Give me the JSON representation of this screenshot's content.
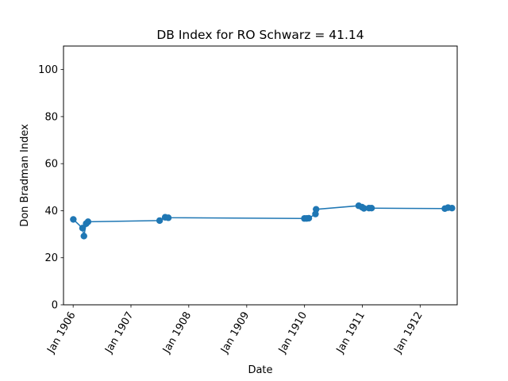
{
  "chart_data": {
    "type": "line",
    "title": "DB Index for RO Schwarz = 41.14",
    "xlabel": "Date",
    "ylabel": "Don Bradman Index",
    "ylim": [
      0,
      110
    ],
    "xlim": [
      "1905-11-01",
      "1912-08-22"
    ],
    "yticks": [
      0,
      20,
      40,
      60,
      80,
      100
    ],
    "xticks": [
      {
        "date": "1906-01-01",
        "label": "Jan 1906"
      },
      {
        "date": "1907-01-01",
        "label": "Jan 1907"
      },
      {
        "date": "1908-01-01",
        "label": "Jan 1908"
      },
      {
        "date": "1909-01-01",
        "label": "Jan 1909"
      },
      {
        "date": "1910-01-01",
        "label": "Jan 1910"
      },
      {
        "date": "1911-01-01",
        "label": "Jan 1911"
      },
      {
        "date": "1912-01-01",
        "label": "Jan 1912"
      }
    ],
    "grid": false,
    "color": "#1f77b4",
    "series": [
      {
        "name": "",
        "points": [
          {
            "x": "1906-01-02",
            "y": 36.3
          },
          {
            "x": "1906-03-01",
            "y": 32.6
          },
          {
            "x": "1906-03-10",
            "y": 29.2
          },
          {
            "x": "1906-03-24",
            "y": 34.5
          },
          {
            "x": "1906-04-05",
            "y": 35.3
          },
          {
            "x": "1907-07-01",
            "y": 35.8
          },
          {
            "x": "1907-08-05",
            "y": 37.2
          },
          {
            "x": "1907-08-25",
            "y": 37.0
          },
          {
            "x": "1909-12-31",
            "y": 36.7
          },
          {
            "x": "1910-01-14",
            "y": 36.7
          },
          {
            "x": "1910-01-28",
            "y": 36.8
          },
          {
            "x": "1910-03-11",
            "y": 38.6
          },
          {
            "x": "1910-03-15",
            "y": 40.6
          },
          {
            "x": "1910-12-09",
            "y": 42.1
          },
          {
            "x": "1910-12-30",
            "y": 41.5
          },
          {
            "x": "1911-01-11",
            "y": 41.0
          },
          {
            "x": "1911-02-12",
            "y": 41.1
          },
          {
            "x": "1911-02-28",
            "y": 41.1
          },
          {
            "x": "1912-06-05",
            "y": 40.9
          },
          {
            "x": "1912-06-25",
            "y": 41.3
          },
          {
            "x": "1912-07-20",
            "y": 41.1
          }
        ]
      }
    ]
  }
}
